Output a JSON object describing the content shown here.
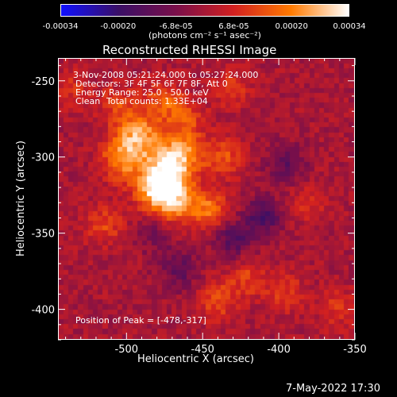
{
  "colorbar": {
    "tick_labels": [
      "-0.00034",
      "-0.00020",
      "-6.8e-05",
      "6.8e-05",
      "0.00020",
      "0.00034"
    ],
    "unit_label": "(photons cm⁻² s⁻¹ asec⁻²)",
    "colors": [
      "#1010ff",
      "#3a0f66",
      "#7a0f4a",
      "#d22020",
      "#ff7a00",
      "#ffffff"
    ]
  },
  "chart_data": {
    "type": "heatmap",
    "title": "Reconstructed RHESSI Image",
    "xlabel": "Heliocentric X (arcsec)",
    "ylabel": "Heliocentric Y (arcsec)",
    "xlim": [
      -545,
      -350
    ],
    "ylim": [
      -420,
      -235
    ],
    "x_ticks": [
      -500,
      -450,
      -400,
      -350
    ],
    "y_ticks": [
      -250,
      -300,
      -350,
      -400
    ],
    "value_range": [
      -0.00034,
      0.00034
    ],
    "peak": [
      -478,
      -317
    ],
    "sources": [
      {
        "x": -478,
        "y": -317,
        "value": 0.00034
      },
      {
        "x": -493,
        "y": -287,
        "value": 0.00026
      },
      {
        "x": -465,
        "y": -299,
        "value": 0.00024
      },
      {
        "x": -470,
        "y": -330,
        "value": 0.00021
      },
      {
        "x": -445,
        "y": -335,
        "value": 0.00018
      },
      {
        "x": -505,
        "y": -303,
        "value": 0.00017
      },
      {
        "x": -475,
        "y": -263,
        "value": 0.00015
      },
      {
        "x": -435,
        "y": -300,
        "value": 0.00013
      },
      {
        "x": -515,
        "y": -345,
        "value": 0.00012
      },
      {
        "x": -505,
        "y": -265,
        "value": 0.00011
      },
      {
        "x": -460,
        "y": -275,
        "value": 0.00011
      },
      {
        "x": -430,
        "y": -255,
        "value": 9e-05
      },
      {
        "x": -420,
        "y": -380,
        "value": 0.00011
      },
      {
        "x": -440,
        "y": -395,
        "value": 0.00013
      },
      {
        "x": -395,
        "y": -390,
        "value": 0.0001
      },
      {
        "x": -380,
        "y": -330,
        "value": 8e-05
      },
      {
        "x": -360,
        "y": -400,
        "value": 9e-05
      },
      {
        "x": -535,
        "y": -255,
        "value": 8e-05
      },
      {
        "x": -410,
        "y": -340,
        "value": -0.00016
      },
      {
        "x": -430,
        "y": -355,
        "value": -0.00014
      },
      {
        "x": -395,
        "y": -305,
        "value": -0.00012
      },
      {
        "x": -480,
        "y": -350,
        "value": -0.0001
      },
      {
        "x": -465,
        "y": -375,
        "value": -0.00012
      }
    ]
  },
  "annotations": {
    "time_range": "3-Nov-2008 05:21:24.000 to 05:27:24.000",
    "detectors": "Detectors: 3F 4F 5F 6F 7F 8F, Att 0",
    "energy": "Energy Range: 25.0 - 50.0 keV",
    "method": "Clean",
    "total_counts": "Total counts: 1.33E+04",
    "peak_position": "Position of Peak = [-478,-317]"
  },
  "footer": {
    "datetime": "7-May-2022 17:30"
  }
}
